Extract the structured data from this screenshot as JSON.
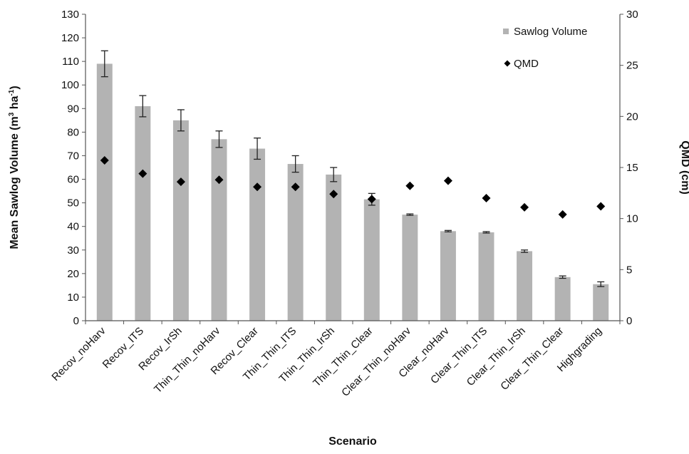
{
  "chart_data": {
    "type": "bar",
    "categories": [
      "Recov_noHarv",
      "Recov_ITS",
      "Recov_IrSh",
      "Thin_Thin_noHarv",
      "Recov_Clear",
      "Thin_Thin_ITS",
      "Thin_Thin_IrSh",
      "Thin_Thin_Clear",
      "Clear_Thin_noHarv",
      "Clear_noHarv",
      "Clear_Thin_ITS",
      "Clear_Thin_IrSh",
      "Clear_Thin_Clear",
      "Highgrading"
    ],
    "series": [
      {
        "name": "Sawlog Volume",
        "axis": "left",
        "type": "bar",
        "color": "#b3b3b3",
        "values": [
          109,
          91,
          85,
          77,
          73,
          66.5,
          62,
          51.5,
          45,
          38,
          37.5,
          29.5,
          18.5,
          15.5
        ],
        "error": [
          5.5,
          4.5,
          4.5,
          3.5,
          4.5,
          3.5,
          3.0,
          2.5,
          0.3,
          0.3,
          0.3,
          0.5,
          0.5,
          1.0
        ]
      },
      {
        "name": "QMD",
        "axis": "right",
        "type": "scatter",
        "color": "#000000",
        "values": [
          15.7,
          14.4,
          13.6,
          13.8,
          13.1,
          13.1,
          12.4,
          11.9,
          13.2,
          13.7,
          12.0,
          11.1,
          10.4,
          11.2
        ]
      }
    ],
    "xlabel": "Scenario",
    "ylabel": "Mean Sawlog Volume (m³ ha⁻¹)",
    "ylabel_parts": {
      "pre": "Mean Sawlog Volume (m",
      "sup1": "3",
      "mid": " ha",
      "sup2": "-1",
      "post": ")"
    },
    "y2label": "QMD (cm)",
    "ylim": [
      0,
      130
    ],
    "y_ticks": [
      0,
      10,
      20,
      30,
      40,
      50,
      60,
      70,
      80,
      90,
      100,
      110,
      120,
      130
    ],
    "y2lim": [
      0,
      30
    ],
    "y2_ticks": [
      0,
      5,
      10,
      15,
      20,
      25,
      30
    ],
    "grid": false,
    "legend_position": "top-right"
  }
}
